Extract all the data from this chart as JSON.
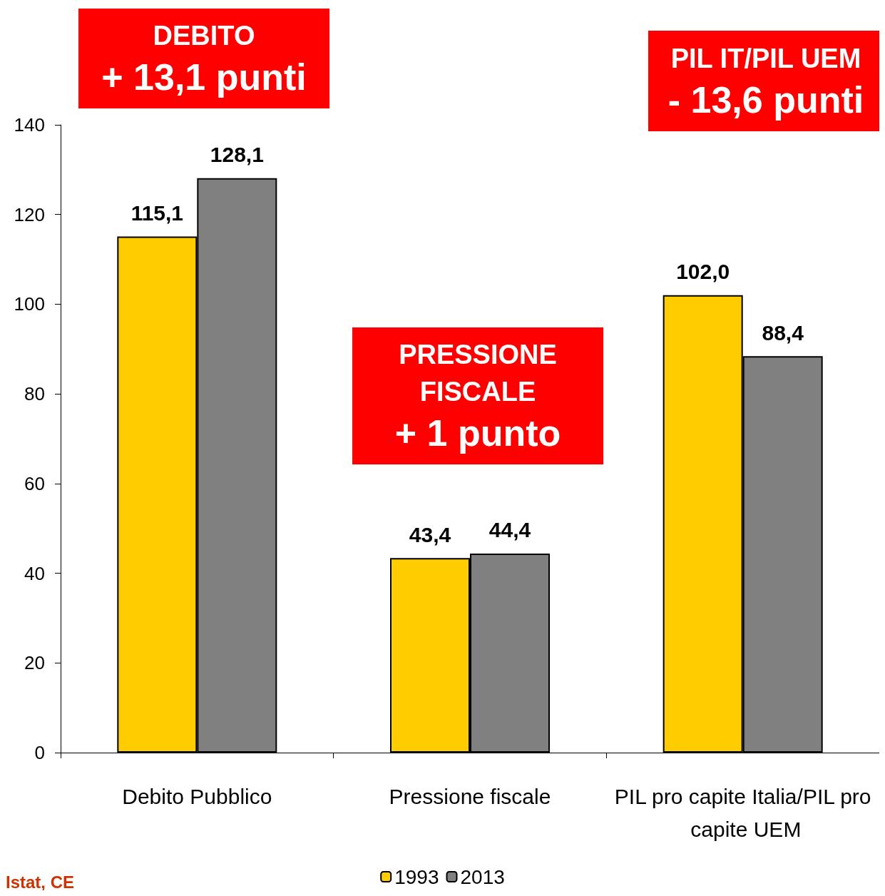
{
  "chart_data": {
    "type": "bar",
    "categories": [
      "Debito Pubblico",
      "Pressione fiscale",
      "PIL pro capite Italia/PIL pro capite UEM"
    ],
    "series": [
      {
        "name": "1993",
        "color": "#ffcc00",
        "values": [
          115.1,
          43.4,
          102.0
        ],
        "value_labels": [
          "115,1",
          "43,4",
          "102,0"
        ]
      },
      {
        "name": "2013",
        "color": "#808080",
        "values": [
          128.1,
          44.4,
          88.4
        ],
        "value_labels": [
          "128,1",
          "44,4",
          "88,4"
        ]
      }
    ],
    "ylim": [
      0,
      140
    ],
    "yticks": [
      0,
      20,
      40,
      60,
      80,
      100,
      120,
      140
    ],
    "grid": false,
    "legend": "bottom",
    "annotations": [
      "DEBITO\n+ 13,1 punti",
      "PRESSIONE\nFISCALE\n+ 1 punto",
      "PIL IT/PIL UEM\n- 13,6 punti",
      "Istat, CE"
    ]
  }
}
